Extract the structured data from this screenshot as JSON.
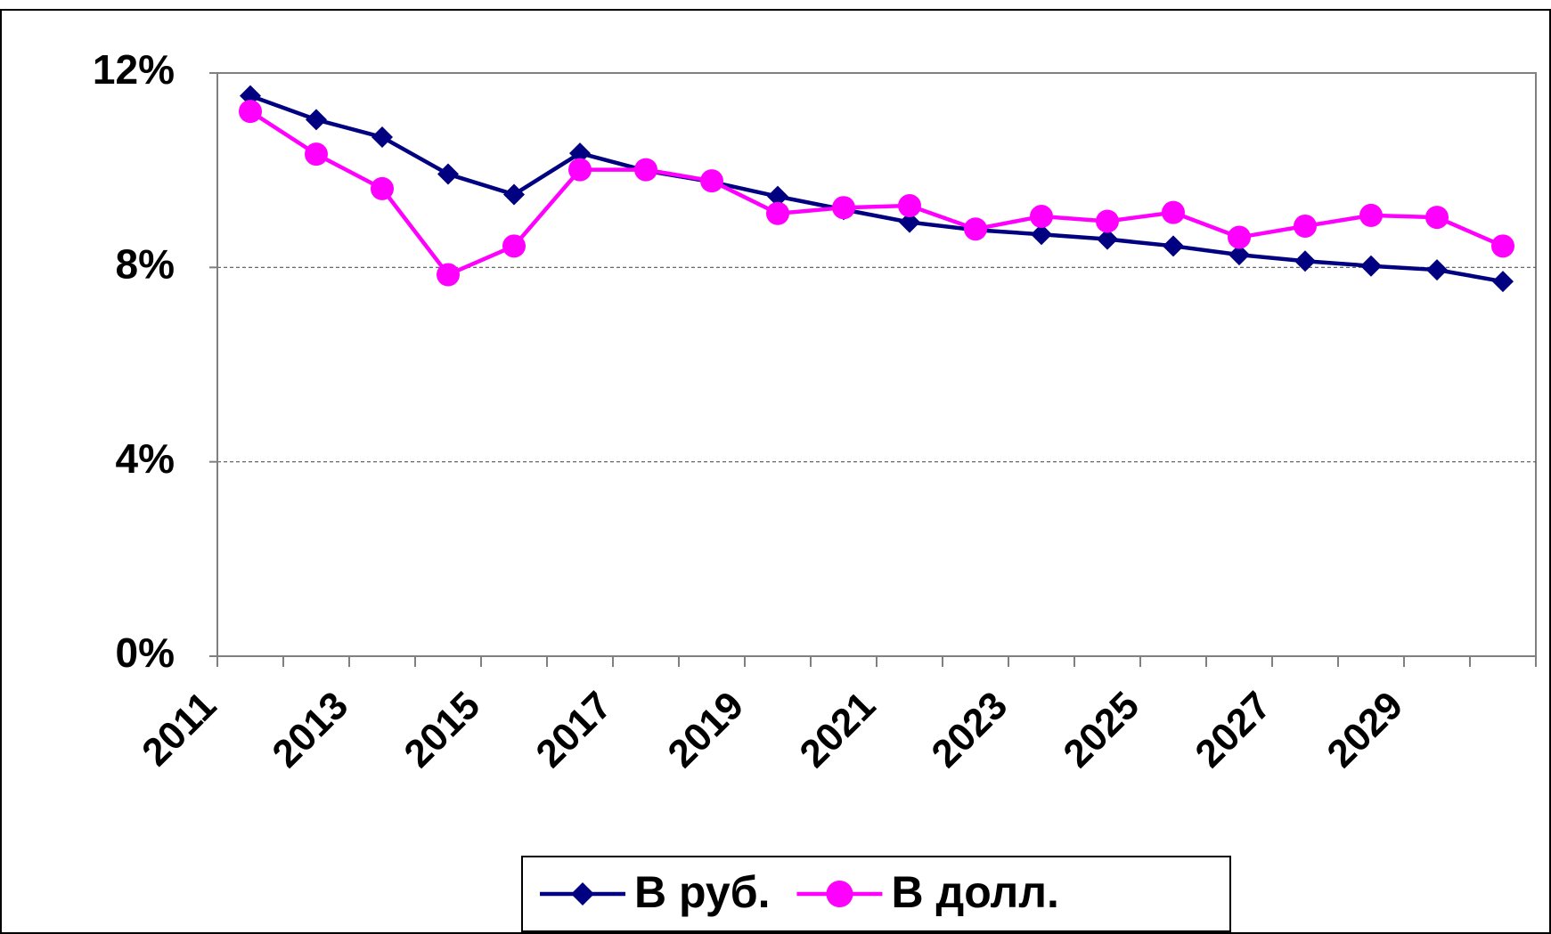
{
  "chart_data": {
    "type": "line",
    "categories": [
      "2011",
      null,
      "2013",
      null,
      "2015",
      null,
      "2017",
      null,
      "2019",
      null,
      "2021",
      null,
      "2023",
      null,
      "2025",
      null,
      "2027",
      null,
      "2029",
      null
    ],
    "series": [
      {
        "name": "В руб.",
        "color": "#000080",
        "marker": "diamond",
        "values": [
          11.53,
          11.04,
          10.68,
          9.92,
          9.5,
          10.35,
          9.99,
          9.76,
          9.46,
          9.19,
          8.93,
          8.77,
          8.68,
          8.58,
          8.44,
          8.26,
          8.13,
          8.03,
          7.95,
          7.71
        ]
      },
      {
        "name": "В долл.",
        "color": "#ff00ff",
        "marker": "circle",
        "values": [
          11.21,
          10.33,
          9.62,
          7.85,
          8.44,
          10.01,
          10.01,
          9.78,
          9.11,
          9.23,
          9.27,
          8.79,
          9.05,
          8.95,
          9.13,
          8.62,
          8.85,
          9.07,
          9.03,
          8.44
        ]
      }
    ],
    "ylim": [
      0,
      12
    ],
    "yticks": [
      {
        "value": 0,
        "label": "0%"
      },
      {
        "value": 4,
        "label": "4%"
      },
      {
        "value": 8,
        "label": "8%"
      },
      {
        "value": 12,
        "label": "12%"
      }
    ],
    "grid": true,
    "legend": "bottom"
  }
}
